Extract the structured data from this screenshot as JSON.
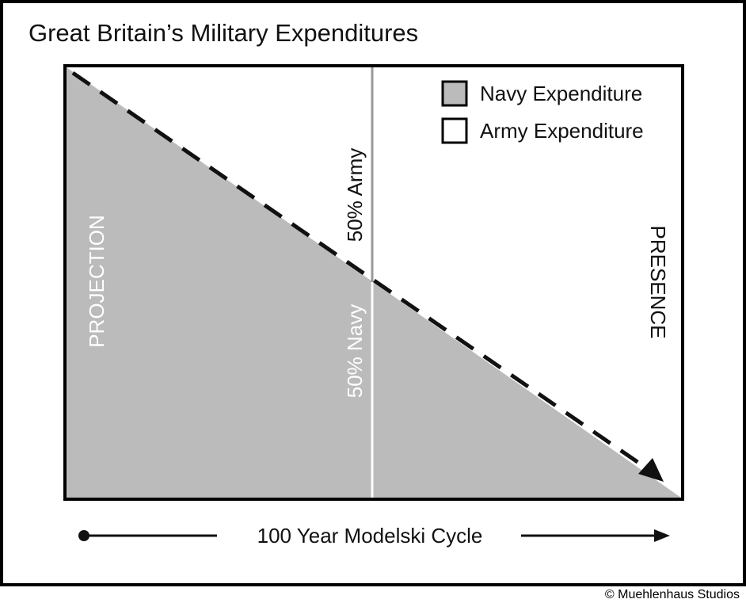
{
  "title": "Great Britain’s Military Expenditures",
  "legend": [
    {
      "label": "Navy Expenditure",
      "color": "#bbbbbb"
    },
    {
      "label": "Army Expenditure",
      "color": "#ffffff"
    }
  ],
  "labels": {
    "projection": "PROJECTION",
    "presence": "PRESENCE",
    "army_half": "50% Army",
    "navy_half": "50% Navy"
  },
  "cycle_label": "100 Year Modelski Cycle",
  "credit": "© Muehlenhaus Studios",
  "colors": {
    "navy_fill": "#bbbbbb",
    "border": "#000000",
    "divider_top": "#999999",
    "divider_bottom": "#ffffff"
  }
}
